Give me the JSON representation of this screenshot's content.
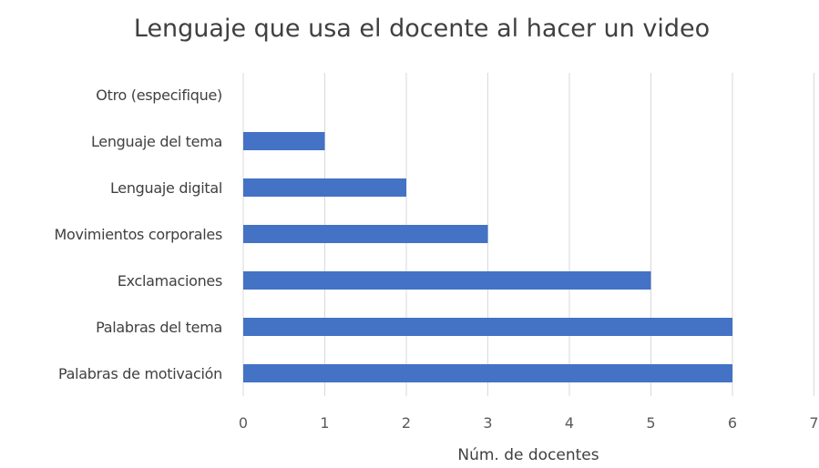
{
  "chart_data": {
    "type": "bar",
    "orientation": "horizontal",
    "title": "Lenguaje que usa el docente al hacer un video",
    "xlabel": "Núm. de docentes",
    "ylabel": "",
    "categories": [
      "Otro (especifique)",
      "Lenguaje del tema",
      "Lenguaje digital",
      "Movimientos corporales",
      "Exclamaciones",
      "Palabras del tema",
      "Palabras de motivación"
    ],
    "values": [
      0,
      1,
      2,
      3,
      5,
      6,
      6
    ],
    "xlim": [
      0,
      7
    ],
    "xticks": [
      "0",
      "1",
      "2",
      "3",
      "4",
      "5",
      "6",
      "7"
    ],
    "grid": "vertical",
    "legend": "none",
    "bar_color": "#4472c4"
  }
}
